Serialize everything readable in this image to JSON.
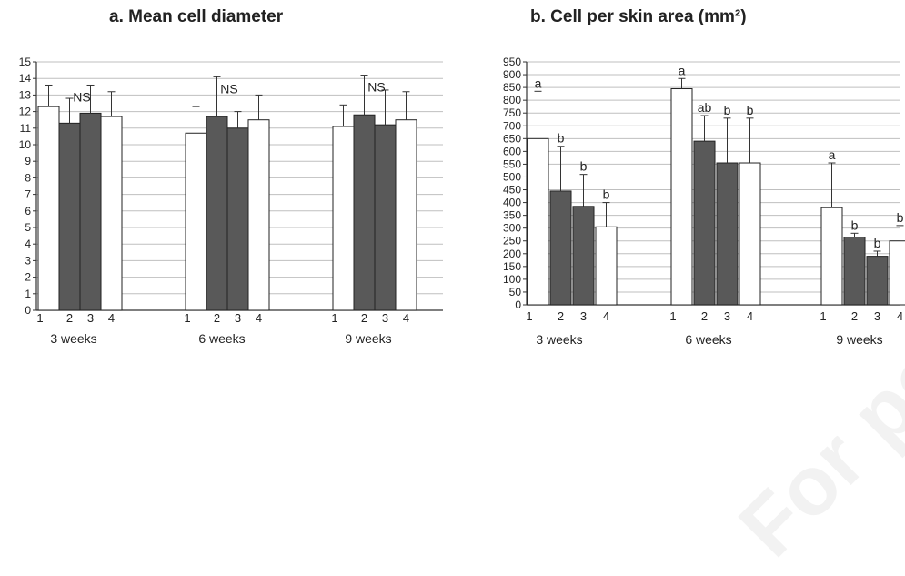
{
  "figure": {
    "panel_a_title": "a. Mean cell diameter",
    "panel_b_title": "b. Cell per skin area (mm²)",
    "watermark": "For personal use only"
  },
  "colors": {
    "dark_bar": "#595959",
    "light_bar": "#ffffff",
    "grid": "#bfbfbf",
    "axis": "#333333",
    "text": "#222222"
  },
  "chart_data": [
    {
      "type": "bar",
      "title": "a. Mean cell diameter",
      "xlabel": "",
      "ylabel": "",
      "ylim": [
        0,
        15
      ],
      "yticks": [
        0,
        1,
        2,
        3,
        4,
        5,
        6,
        7,
        8,
        9,
        10,
        11,
        12,
        13,
        14,
        15
      ],
      "grid": true,
      "groups": [
        "3 weeks",
        "6 weeks",
        "9 weeks"
      ],
      "bar_labels": [
        "1",
        "2",
        "3",
        "4"
      ],
      "bar_fills": [
        "light",
        "dark",
        "dark",
        "light"
      ],
      "values": [
        [
          12.3,
          11.3,
          11.9,
          11.7
        ],
        [
          10.7,
          11.7,
          11.0,
          11.5
        ],
        [
          11.1,
          11.8,
          11.2,
          11.5
        ]
      ],
      "errors": [
        [
          1.3,
          1.5,
          1.7,
          1.5
        ],
        [
          1.6,
          2.4,
          1.0,
          1.5
        ],
        [
          1.3,
          2.4,
          2.1,
          1.7
        ]
      ],
      "group_annotations": [
        "NS",
        "NS",
        "NS"
      ]
    },
    {
      "type": "bar",
      "title": "b. Cell per skin area (mm²)",
      "xlabel": "",
      "ylabel": "",
      "ylim": [
        0,
        950
      ],
      "yticks": [
        0,
        50,
        100,
        150,
        200,
        250,
        300,
        350,
        400,
        450,
        500,
        550,
        600,
        650,
        700,
        750,
        800,
        850,
        900,
        950
      ],
      "grid": true,
      "groups": [
        "3 weeks",
        "6 weeks",
        "9 weeks"
      ],
      "bar_labels": [
        "1",
        "2",
        "3",
        "4"
      ],
      "bar_fills": [
        "light",
        "dark",
        "dark",
        "light"
      ],
      "values": [
        [
          650,
          445,
          385,
          305
        ],
        [
          845,
          640,
          555,
          555
        ],
        [
          380,
          265,
          190,
          250
        ]
      ],
      "errors": [
        [
          185,
          175,
          125,
          95
        ],
        [
          40,
          100,
          175,
          175
        ],
        [
          175,
          15,
          20,
          60
        ]
      ],
      "bar_annotations": [
        [
          "a",
          "b",
          "b",
          "b"
        ],
        [
          "a",
          "ab",
          "b",
          "b"
        ],
        [
          "a",
          "b",
          "b",
          "b"
        ]
      ]
    }
  ]
}
